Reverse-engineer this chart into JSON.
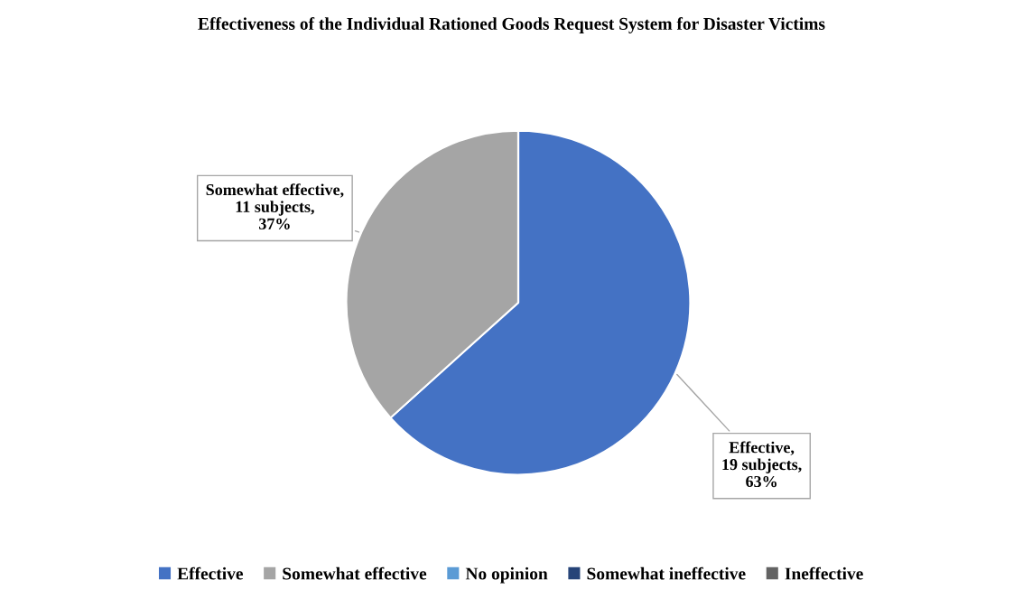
{
  "chart_data": {
    "type": "pie",
    "title": "Effectiveness of the Individual Rationed Goods Request System for Disaster Victims",
    "categories": [
      "Effective",
      "Somewhat effective",
      "No opinion",
      "Somewhat ineffective",
      "Ineffective"
    ],
    "values": [
      19,
      11,
      0,
      0,
      0
    ],
    "colors": [
      "#4472c4",
      "#a5a5a5",
      "#5b9bd5",
      "#264478",
      "#636363"
    ],
    "value_labels": [
      "Effective, 19 subjects, 63%",
      "Somewhat effective, 11 subjects, 37%",
      null,
      null,
      null
    ],
    "legend": "bottom"
  }
}
